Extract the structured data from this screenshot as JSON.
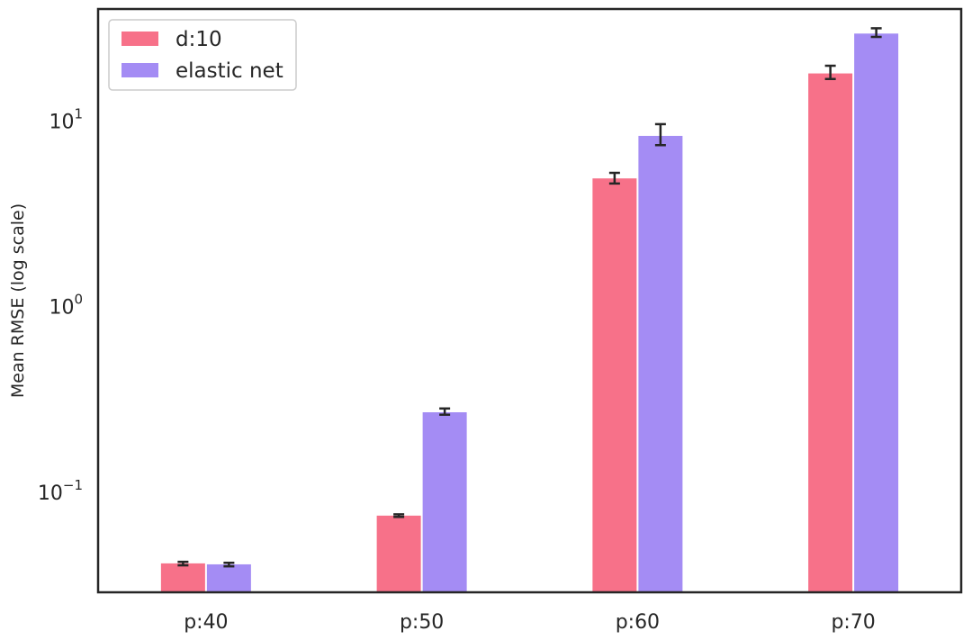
{
  "chart_data": {
    "type": "bar",
    "categories": [
      "p:40",
      "p:50",
      "p:60",
      "p:70"
    ],
    "series": [
      {
        "name": "d:10",
        "color": "#f77189",
        "values": [
          0.0415,
          0.075,
          4.9,
          18.0
        ],
        "err_low": [
          0.0405,
          0.0738,
          4.6,
          16.8
        ],
        "err_high": [
          0.0423,
          0.0762,
          5.25,
          19.8
        ]
      },
      {
        "name": "elastic net",
        "color": "#a48cf4",
        "values": [
          0.041,
          0.27,
          8.3,
          29.5
        ],
        "err_low": [
          0.04,
          0.262,
          7.4,
          28.3
        ],
        "err_high": [
          0.0418,
          0.283,
          9.6,
          31.5
        ]
      }
    ],
    "title": "",
    "xlabel": "",
    "ylabel": "Mean RMSE (log scale)",
    "yscale": "log",
    "ylim": [
      0.029,
      40
    ],
    "yticks": [
      {
        "value": 0.1,
        "base": "10",
        "exp": "−1"
      },
      {
        "value": 1,
        "base": "10",
        "exp": "0"
      },
      {
        "value": 10,
        "base": "10",
        "exp": "1"
      }
    ],
    "grid": false,
    "legend": "top-left"
  }
}
